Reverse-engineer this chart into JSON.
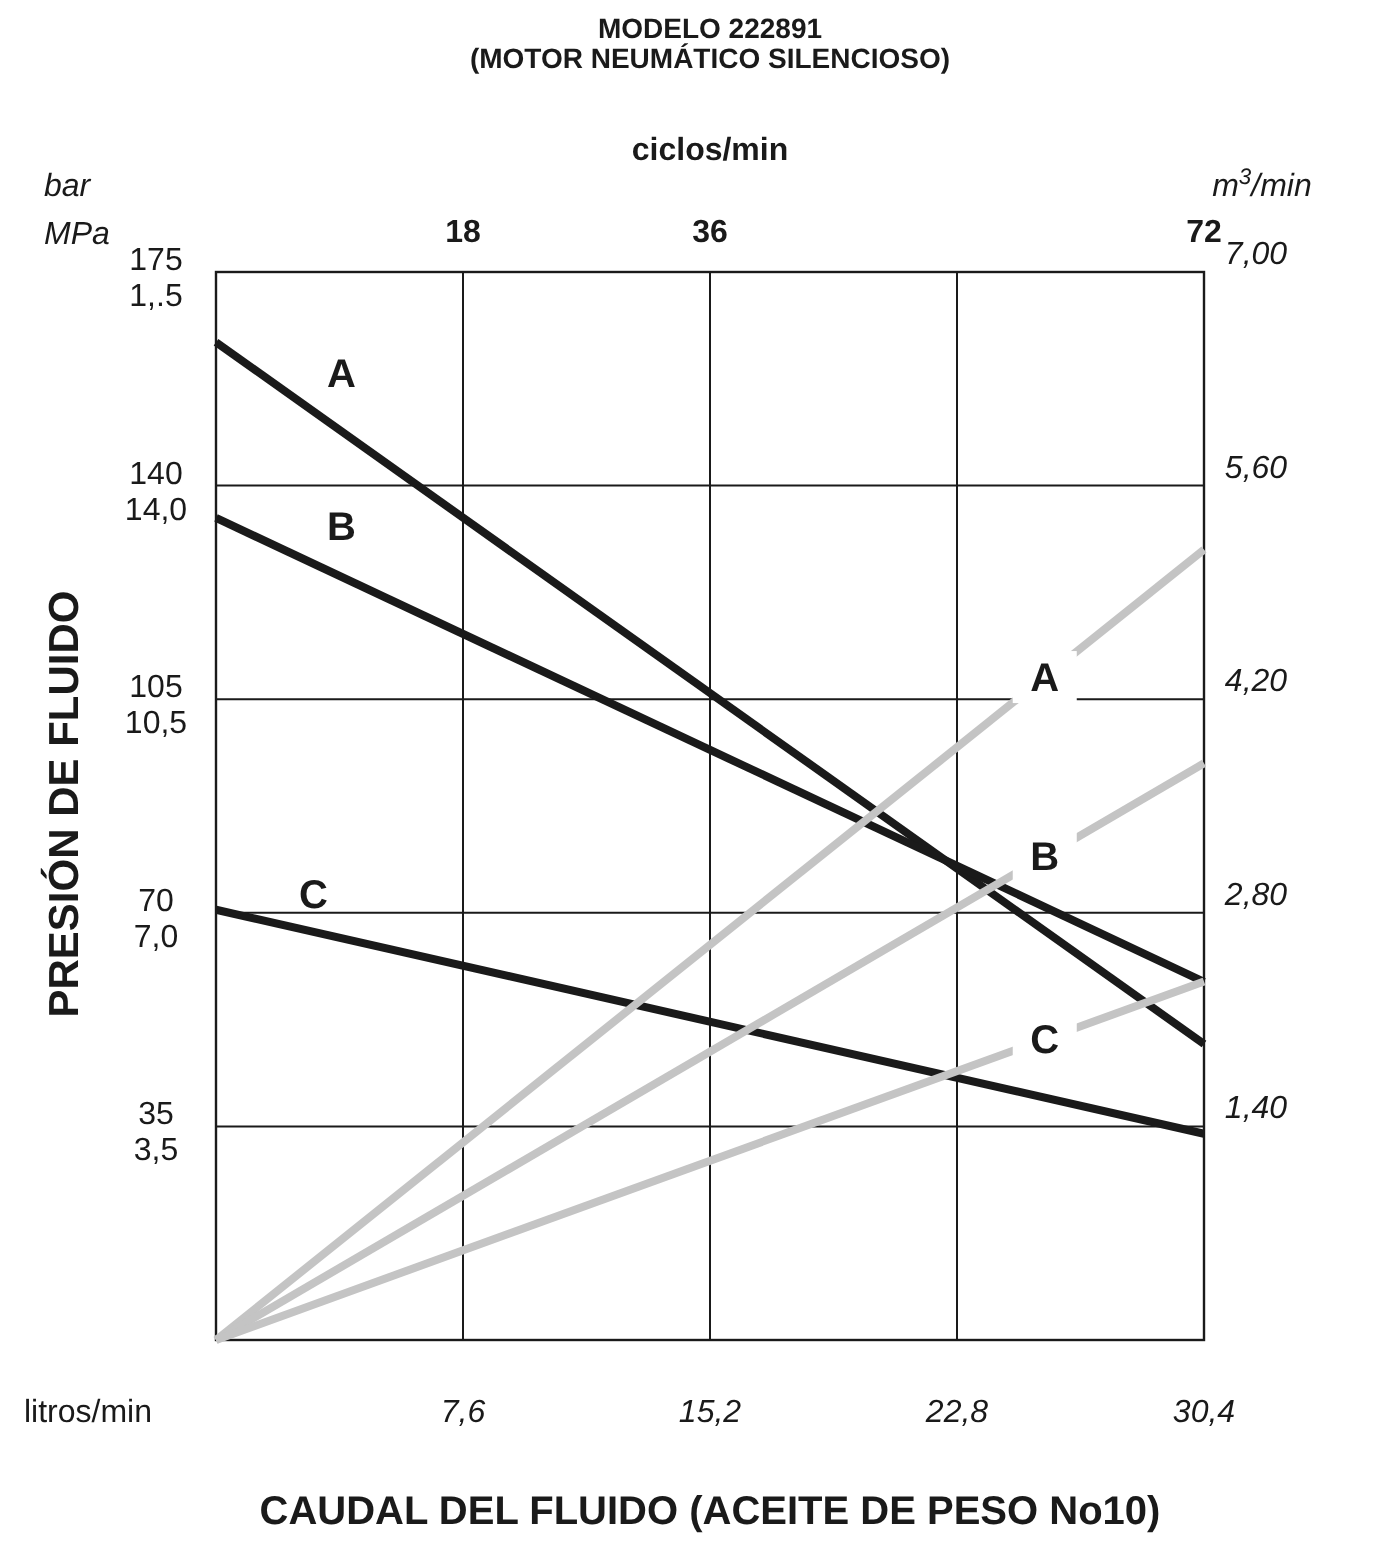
{
  "chart_data": {
    "type": "line",
    "title": "MODELO 222891",
    "subtitle": "(MOTOR NEUMÁTICO SILENCIOSO)",
    "xlabel": "CAUDAL DEL FLUIDO (ACEITE DE PESO No10)",
    "ylabel": "PRESIÓN DE FLUIDO",
    "y2label": "m$^{3}$/min",
    "x2label": "ciclos/min",
    "annotations": [
      "bar",
      "MPa",
      "litros/min"
    ],
    "x": [
      0,
      30.4
    ],
    "series": [
      {
        "name": "A",
        "color": "#1a1a1a",
        "values": [
          163.5,
          48.5
        ]
      },
      {
        "name": "B",
        "color": "#1a1a1a",
        "values": [
          134.7,
          58.7
        ]
      },
      {
        "name": "C",
        "color": "#1a1a1a",
        "values": [
          70.5,
          33.8
        ]
      },
      {
        "name": "A",
        "color": "#c4c4c4",
        "axis": "y2",
        "values": [
          0,
          5.18
        ]
      },
      {
        "name": "B",
        "color": "#c4c4c4",
        "axis": "y2",
        "values": [
          0,
          3.78
        ]
      },
      {
        "name": "C",
        "color": "#c4c4c4",
        "axis": "y2",
        "values": [
          0,
          2.35
        ]
      }
    ],
    "xlim": [
      0,
      30.4
    ],
    "xticks": [
      {
        "value": 7.6,
        "label": "7,6"
      },
      {
        "value": 15.2,
        "label": "15,2"
      },
      {
        "value": 22.8,
        "label": "22,8"
      },
      {
        "value": 30.4,
        "label": "30,4"
      }
    ],
    "x2lim": [
      0,
      72
    ],
    "x2ticks": [
      18,
      36,
      72
    ],
    "ylim": [
      0,
      175
    ],
    "yticks": [
      35,
      70,
      105,
      140,
      175
    ],
    "y3lim": [
      0,
      17.5
    ],
    "y3ticks": [
      {
        "value": 3.5,
        "label": "3,5"
      },
      {
        "value": 7,
        "label": "7,0"
      },
      {
        "value": 10.5,
        "label": "10,5"
      },
      {
        "value": 14,
        "label": "14,0"
      },
      {
        "value": 17.5,
        "label": "1,.5"
      }
    ],
    "y2lim": [
      0,
      7
    ],
    "y2ticks": [
      {
        "value": 1.4,
        "label": "1,40"
      },
      {
        "value": 2.8,
        "label": "2,80"
      },
      {
        "value": 4.2,
        "label": "4,20"
      },
      {
        "value": 5.6,
        "label": "5,60"
      },
      {
        "value": 7,
        "label": "7,00"
      }
    ],
    "grid": true,
    "line_style": "solid",
    "marker": "none"
  }
}
